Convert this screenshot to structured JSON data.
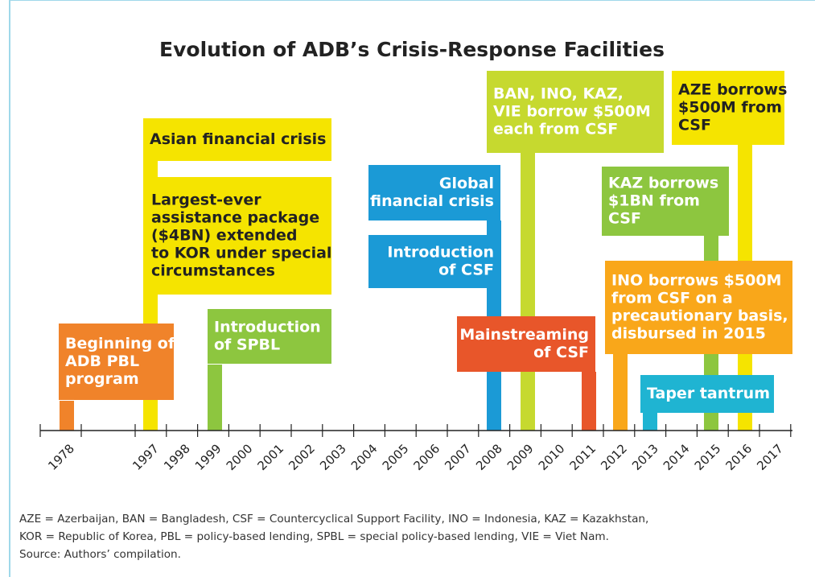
{
  "title": "Evolution of ADB’s Crisis-Response Facilities",
  "years": [
    "1978",
    "1997",
    "1998",
    "1999",
    "2000",
    "2001",
    "2002",
    "2003",
    "2004",
    "2005",
    "2006",
    "2007",
    "2008",
    "2009",
    "2010",
    "2011",
    "2012",
    "2013",
    "2014",
    "2015",
    "2016",
    "2017"
  ],
  "events": [
    {
      "lines": [
        "Beginning of",
        "ADB PBL",
        "program"
      ]
    },
    {
      "lines": [
        "Asian financial crisis"
      ]
    },
    {
      "lines": [
        "Largest-ever",
        "assistance package",
        "($4BN) extended",
        "to KOR under special",
        "circumstances"
      ]
    },
    {
      "lines": [
        "Introduction",
        "of SPBL"
      ]
    },
    {
      "lines": [
        "Global",
        "financial crisis"
      ]
    },
    {
      "lines": [
        "Introduction",
        "of CSF"
      ]
    },
    {
      "lines": [
        "BAN, INO, KAZ,",
        "VIE borrow $500M",
        "each from CSF"
      ]
    },
    {
      "lines": [
        "Mainstreaming",
        "of CSF"
      ]
    },
    {
      "lines": [
        "INO borrows $500M",
        "from CSF on a",
        "precautionary basis,",
        "disbursed in 2015"
      ]
    },
    {
      "lines": [
        "Taper tantrum"
      ]
    },
    {
      "lines": [
        "KAZ borrows",
        "$1BN from",
        "CSF"
      ]
    },
    {
      "lines": [
        "AZE borrows",
        "$500M from",
        "CSF"
      ]
    }
  ],
  "notes": [
    "AZE = Azerbaijan, BAN = Bangladesh, CSF = Countercyclical Support Facility, INO = Indonesia, KAZ = Kazakhstan,",
    "KOR = Republic of Korea, PBL = policy-based lending, SPBL = special policy-based lending, VIE = Viet Nam.",
    "Source: Authors’ compilation."
  ]
}
